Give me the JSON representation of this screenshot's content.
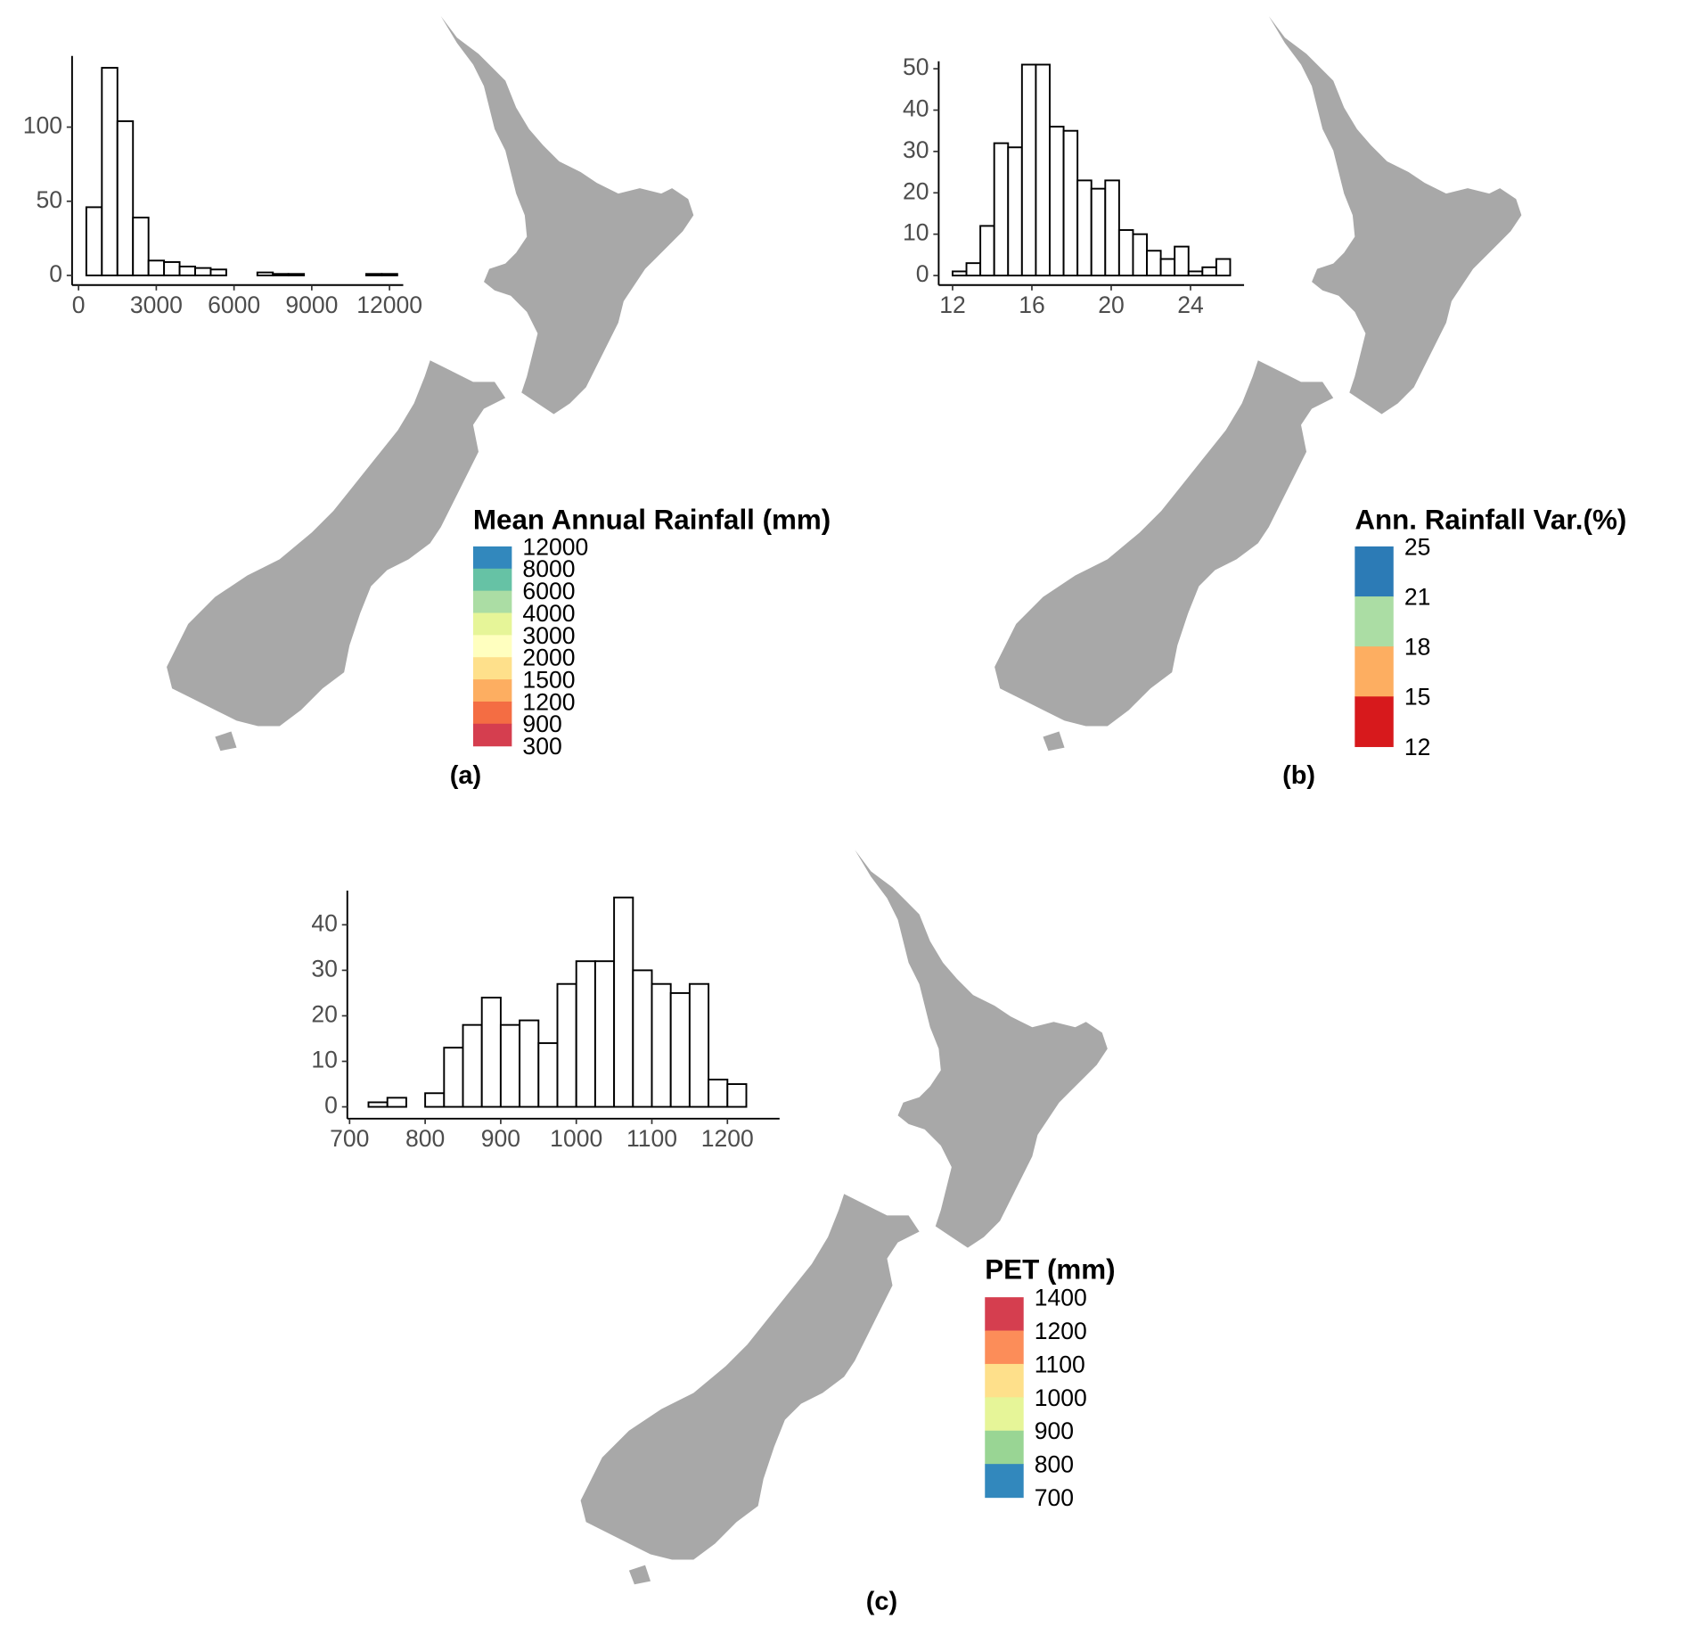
{
  "chart_data": [
    {
      "type": "histogram",
      "panel_label": "(a)",
      "bins": [
        300,
        900,
        1500,
        2100,
        2700,
        3300,
        3900,
        4500,
        5100,
        5700,
        6300,
        6900,
        7500,
        8100,
        8700,
        9300,
        9900,
        10500,
        11100,
        11700,
        12300
      ],
      "counts": [
        46,
        140,
        104,
        39,
        10,
        9,
        6,
        5,
        4,
        0,
        0,
        2,
        1,
        1,
        0,
        0,
        0,
        0,
        1,
        1
      ],
      "xlim": [
        -250,
        12530
      ],
      "ylim": [
        -6.5,
        148
      ],
      "xticks": [
        0,
        3000,
        6000,
        9000,
        12000
      ],
      "yticks": [
        0,
        50,
        100
      ],
      "legend": {
        "title": "Mean Annual Rainfall (mm)",
        "breaks": [
          12000,
          8000,
          6000,
          4000,
          3000,
          2000,
          1500,
          1200,
          900,
          300
        ],
        "colors": [
          "#3288bd",
          "#66c2a5",
          "#abdda4",
          "#e6f598",
          "#ffffbf",
          "#fee08b",
          "#fdae61",
          "#f46d43",
          "#d53e4f"
        ]
      }
    },
    {
      "type": "histogram",
      "panel_label": "(b)",
      "bins": [
        12,
        12.7,
        13.4,
        14.1,
        14.8,
        15.5,
        16.2,
        16.9,
        17.6,
        18.3,
        19,
        19.7,
        20.4,
        21.1,
        21.8,
        22.5,
        23.2,
        23.9,
        24.6,
        25.3,
        26
      ],
      "counts": [
        1,
        3,
        12,
        32,
        31,
        51,
        51,
        36,
        35,
        23,
        21,
        23,
        11,
        10,
        6,
        4,
        7,
        1,
        2,
        4
      ],
      "xlim": [
        11.3,
        26.7
      ],
      "ylim": [
        -2.3,
        51.8
      ],
      "xticks": [
        12,
        16,
        20,
        24
      ],
      "yticks": [
        0,
        10,
        20,
        30,
        40,
        50
      ],
      "legend": {
        "title": "Ann. Rainfall Var.(%)",
        "breaks": [
          25,
          21,
          18,
          15,
          12
        ],
        "colors": [
          "#2c7bb6",
          "#abdda4",
          "#fdae61",
          "#d7191c"
        ]
      }
    },
    {
      "type": "histogram",
      "panel_label": "(c)",
      "bins": [
        725,
        750,
        775,
        800,
        825,
        850,
        875,
        900,
        925,
        950,
        975,
        1000,
        1025,
        1050,
        1075,
        1100,
        1125,
        1150,
        1175,
        1200,
        1225
      ],
      "counts": [
        1,
        2,
        0,
        3,
        13,
        18,
        24,
        18,
        19,
        14,
        27,
        32,
        32,
        46,
        30,
        27,
        25,
        27,
        6,
        5
      ],
      "xlim": [
        697,
        1269
      ],
      "ylim": [
        -2.6,
        47.5
      ],
      "xticks": [
        700,
        800,
        900,
        1000,
        1100,
        1200
      ],
      "yticks": [
        0,
        10,
        20,
        30,
        40
      ],
      "legend": {
        "title": "PET (mm)",
        "breaks": [
          1400,
          1200,
          1100,
          1000,
          900,
          800,
          700
        ],
        "colors": [
          "#d53e4f",
          "#fc8d59",
          "#fee08b",
          "#e6f598",
          "#99d594",
          "#3288bd"
        ]
      }
    }
  ]
}
